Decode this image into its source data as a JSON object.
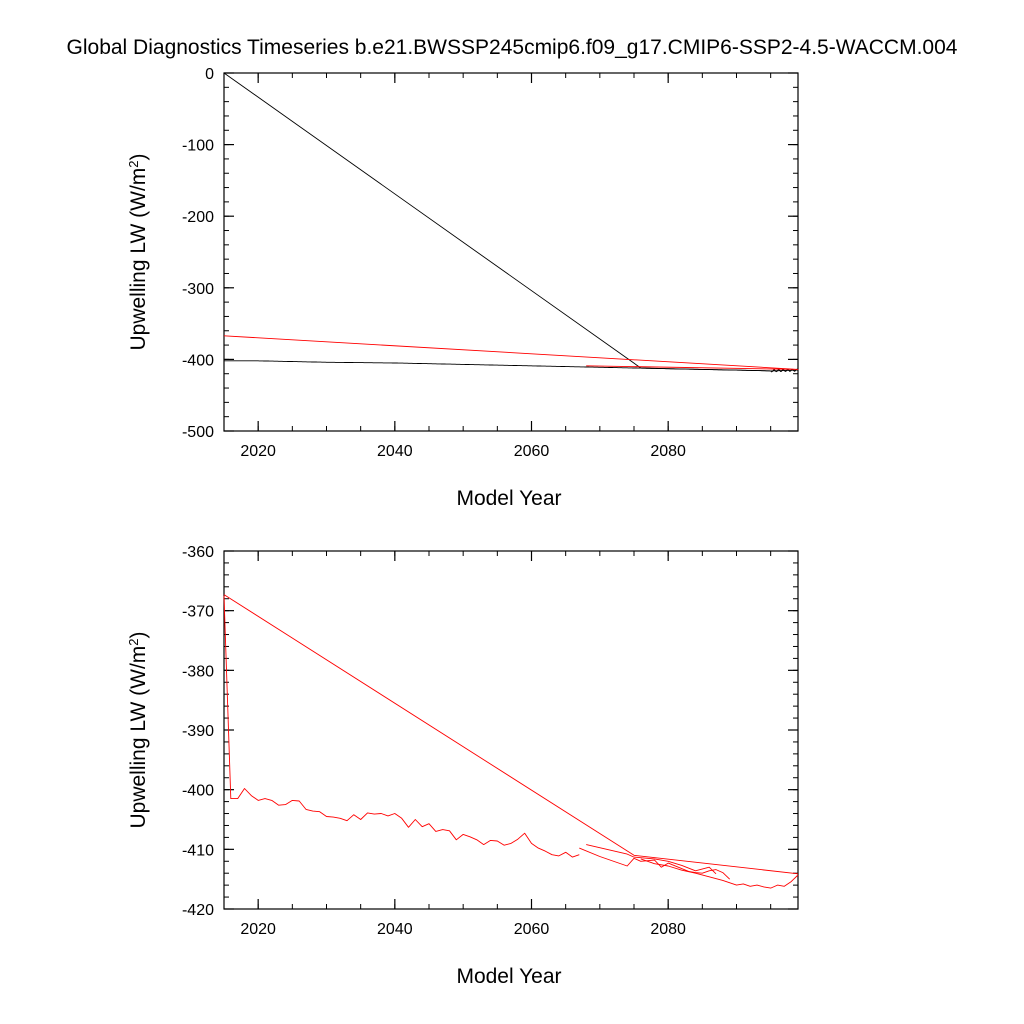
{
  "title": "Global Diagnostics Timeseries b.e21.BWSSP245cmip6.f09_g17.CMIP6-SSP2-4.5-WACCM.004",
  "colors": {
    "black_series": "#000000",
    "red_series": "#ff0000"
  },
  "chart_data": [
    {
      "type": "line",
      "xlabel": "Model Year",
      "ylabel": "Upwelling LW (W/m2)",
      "xlim": [
        2015,
        2099
      ],
      "ylim": [
        -500,
        0
      ],
      "x_ticks": [
        2020,
        2040,
        2060,
        2080
      ],
      "y_ticks": [
        0,
        -100,
        -200,
        -300,
        -400,
        -500
      ],
      "x_tick_labels": [
        "2020",
        "2040",
        "2060",
        "2080"
      ],
      "y_tick_labels": [
        "0",
        "-100",
        "-200",
        "-300",
        "-400",
        "-500"
      ],
      "grid": false,
      "series": [
        {
          "color": "#000000",
          "x": [
            2015,
            2076,
            2076,
            2080,
            2085,
            2090,
            2095,
            2099
          ],
          "y": [
            0,
            -412,
            -412,
            -413,
            -414,
            -415,
            -416,
            -415
          ]
        },
        {
          "color": "#000000",
          "x": [
            2015,
            2020,
            2025,
            2030,
            2035,
            2040,
            2045,
            2050,
            2055,
            2060,
            2065,
            2070,
            2075,
            2080,
            2085,
            2090,
            2095,
            2099
          ],
          "y": [
            -402,
            -402,
            -403,
            -404,
            -404.5,
            -405,
            -406,
            -407,
            -408,
            -409,
            -410,
            -411,
            -412,
            -413,
            -414,
            -415,
            -416,
            -415
          ],
          "wiggle": true
        },
        {
          "color": "#ff0000",
          "x": [
            2015,
            2099,
            2068
          ],
          "y": [
            -367,
            -414,
            -409
          ]
        }
      ]
    },
    {
      "type": "line",
      "xlabel": "Model Year",
      "ylabel": "Upwelling LW (W/m2)",
      "xlim": [
        2015,
        2099
      ],
      "ylim": [
        -420,
        -360
      ],
      "x_ticks": [
        2020,
        2040,
        2060,
        2080
      ],
      "y_ticks": [
        -360,
        -370,
        -380,
        -390,
        -400,
        -410,
        -420
      ],
      "x_tick_labels": [
        "2020",
        "2040",
        "2060",
        "2080"
      ],
      "y_tick_labels": [
        "-360",
        "-370",
        "-380",
        "-390",
        "-400",
        "-410",
        "-420"
      ],
      "grid": false,
      "series": [
        {
          "color": "#ff0000",
          "x": [
            2015,
            2016,
            2017,
            2018,
            2019,
            2020,
            2021,
            2022,
            2023,
            2024,
            2025,
            2026,
            2027,
            2028,
            2029,
            2030,
            2031,
            2032,
            2033,
            2034,
            2035,
            2036,
            2037,
            2038,
            2039,
            2040,
            2041,
            2042,
            2043,
            2044,
            2045,
            2046,
            2047,
            2048,
            2049,
            2050,
            2051,
            2052,
            2053,
            2054,
            2055,
            2056,
            2057,
            2058,
            2059,
            2060,
            2061,
            2062,
            2063,
            2064,
            2065,
            2066,
            2067
          ],
          "y": [
            -367.5,
            -401.5,
            -401.5,
            -399.8,
            -401,
            -401.8,
            -401.5,
            -401.8,
            -402.6,
            -402.5,
            -401.8,
            -401.9,
            -403.3,
            -403.6,
            -403.7,
            -404.5,
            -404.6,
            -404.8,
            -405.2,
            -404.2,
            -405.0,
            -403.9,
            -404.1,
            -404.0,
            -404.4,
            -404.0,
            -404.8,
            -406.3,
            -405.0,
            -406.2,
            -405.7,
            -407.0,
            -406.7,
            -406.9,
            -408.4,
            -407.5,
            -407.9,
            -408.4,
            -409.2,
            -408.5,
            -408.6,
            -409.3,
            -409.0,
            -408.3,
            -407.3,
            -409.0,
            -409.8,
            -410.3,
            -410.9,
            -411.1,
            -410.5,
            -411.3,
            -410.9
          ]
        },
        {
          "color": "#ff0000",
          "x": [
            2015,
            2075,
            2099
          ],
          "y": [
            -367.3,
            -411.0,
            -414.1
          ]
        },
        {
          "color": "#ff0000",
          "x": [
            2067,
            2070,
            2074,
            2075,
            2076,
            2078,
            2079,
            2080,
            2083,
            2084,
            2085,
            2086,
            2087,
            2088,
            2089
          ],
          "y": [
            -409.8,
            -411.2,
            -412.8,
            -411.5,
            -412.0,
            -411.8,
            -413.0,
            -412.3,
            -413.7,
            -413.9,
            -414.0,
            -413.6,
            -413.4,
            -413.9,
            -415.0
          ]
        },
        {
          "color": "#ff0000",
          "x": [
            2068,
            2074,
            2075,
            2078,
            2080,
            2082,
            2084,
            2086,
            2087
          ],
          "y": [
            -409.2,
            -410.8,
            -411.3,
            -411.6,
            -412.0,
            -412.7,
            -413.6,
            -413.0,
            -414.1
          ]
        },
        {
          "color": "#ff0000",
          "x": [
            2076,
            2078,
            2080,
            2082,
            2084,
            2086,
            2088,
            2090,
            2091,
            2092,
            2093,
            2094,
            2095,
            2096,
            2097,
            2098,
            2099
          ],
          "y": [
            -411.6,
            -412.4,
            -412.8,
            -413.5,
            -414.0,
            -414.6,
            -415.2,
            -416.0,
            -415.8,
            -416.2,
            -416.0,
            -416.3,
            -416.5,
            -416.0,
            -416.2,
            -415.4,
            -414.3
          ]
        }
      ]
    }
  ]
}
